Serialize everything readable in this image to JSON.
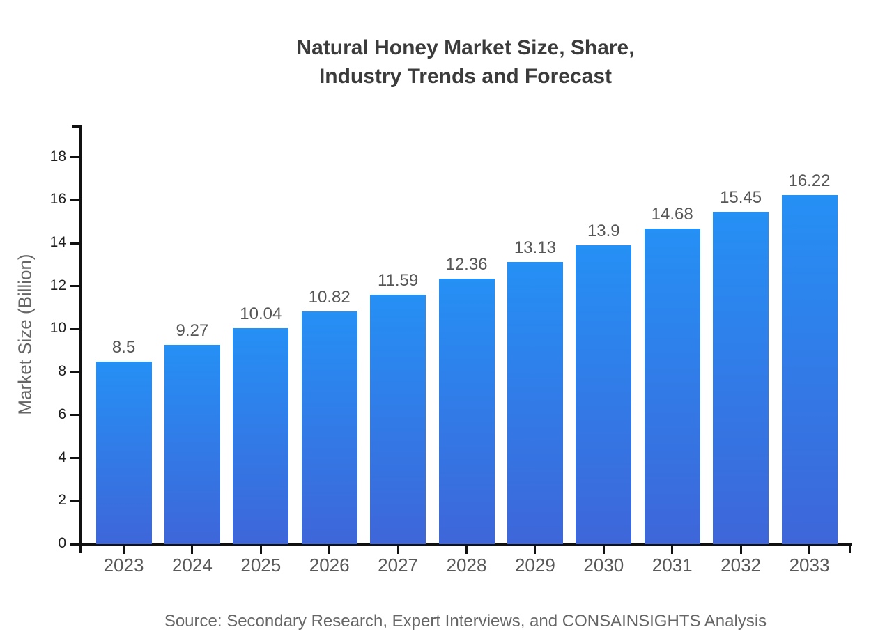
{
  "title": {
    "line1": "Natural Honey Market Size, Share,",
    "line2": "Industry Trends and Forecast"
  },
  "y_axis": {
    "label": "Market Size (Billion)"
  },
  "source": "Source: Secondary Research, Expert Interviews, and CONSAINSIGHTS Analysis",
  "chart_data": {
    "type": "bar",
    "title": "Natural Honey Market Size, Share, Industry Trends and Forecast",
    "categories": [
      "2023",
      "2024",
      "2025",
      "2026",
      "2027",
      "2028",
      "2029",
      "2030",
      "2031",
      "2032",
      "2033"
    ],
    "values": [
      8.5,
      9.27,
      10.04,
      10.82,
      11.59,
      12.36,
      13.13,
      13.9,
      14.68,
      15.45,
      16.22
    ],
    "bar_labels": [
      "8.5",
      "9.27",
      "10.04",
      "10.82",
      "11.59",
      "12.36",
      "13.13",
      "13.9",
      "14.68",
      "15.45",
      "16.22"
    ],
    "xlabel": "",
    "ylabel": "Market Size (Billion)",
    "ylim": [
      0,
      19.5
    ],
    "yticks": [
      0,
      2,
      4,
      6,
      8,
      10,
      12,
      14,
      16,
      18
    ],
    "grid": false,
    "legend": false,
    "colors": {
      "bar_top": "#2590f5",
      "bar_bottom": "#3e66d9",
      "axis": "#111111",
      "title_text": "#3b3b3b",
      "label_text": "#565656",
      "muted_text": "#666666"
    }
  }
}
